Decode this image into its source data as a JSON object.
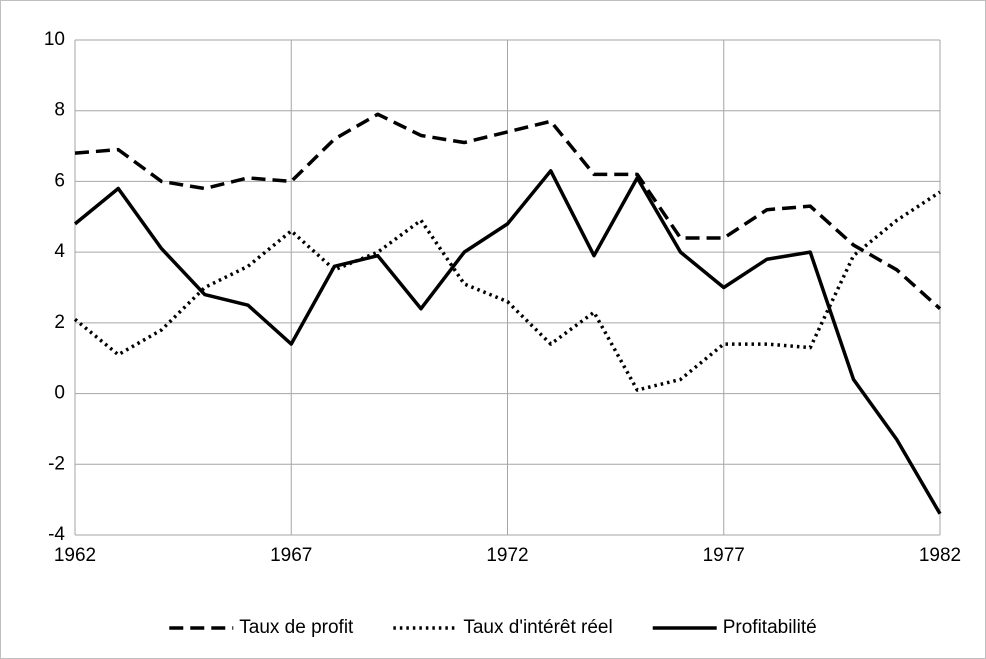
{
  "chart_data": {
    "type": "line",
    "x": [
      1962,
      1963,
      1964,
      1965,
      1966,
      1967,
      1968,
      1969,
      1970,
      1971,
      1972,
      1973,
      1974,
      1975,
      1976,
      1977,
      1978,
      1979,
      1980,
      1981,
      1982
    ],
    "xlim": [
      1962,
      1982
    ],
    "xticks": [
      1962,
      1967,
      1972,
      1977,
      1982
    ],
    "ylim": [
      -4,
      10
    ],
    "yticks": [
      -4,
      -2,
      0,
      2,
      4,
      6,
      8,
      10
    ],
    "grid": true,
    "legend": "bottom",
    "series": [
      {
        "name": "Taux de profit",
        "color": "#000000",
        "dash": "dashed",
        "values": [
          6.8,
          6.9,
          6.0,
          5.8,
          6.1,
          6.0,
          7.2,
          7.9,
          7.3,
          7.1,
          7.4,
          7.7,
          6.2,
          6.2,
          4.4,
          4.4,
          5.2,
          5.3,
          4.2,
          3.5,
          2.4
        ]
      },
      {
        "name": "Taux d'intérêt réel",
        "color": "#000000",
        "dash": "dotted",
        "values": [
          2.1,
          1.1,
          1.8,
          3.0,
          3.6,
          4.6,
          3.5,
          4.0,
          4.9,
          3.1,
          2.6,
          1.4,
          2.3,
          0.1,
          0.4,
          1.4,
          1.4,
          1.3,
          3.9,
          4.9,
          5.7
        ]
      },
      {
        "name": "Profitabilité",
        "color": "#000000",
        "dash": "solid",
        "values": [
          4.8,
          5.8,
          4.1,
          2.8,
          2.5,
          1.4,
          3.6,
          3.9,
          2.4,
          4.0,
          4.8,
          6.3,
          3.9,
          6.1,
          4.0,
          3.0,
          3.8,
          4.0,
          0.4,
          -1.3,
          -3.4
        ]
      }
    ]
  }
}
